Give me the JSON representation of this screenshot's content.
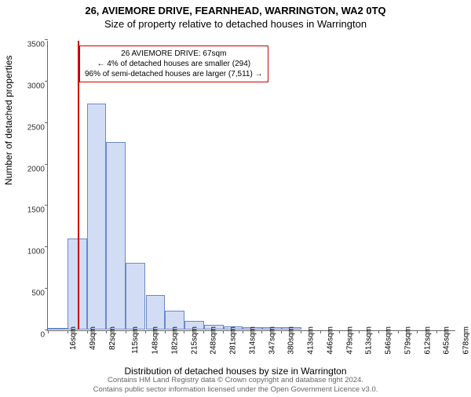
{
  "title_line1": "26, AVIEMORE DRIVE, FEARNHEAD, WARRINGTON, WA2 0TQ",
  "title_line2": "Size of property relative to detached houses in Warrington",
  "ylabel": "Number of detached properties",
  "xlabel": "Distribution of detached houses by size in Warrington",
  "footer_line1": "Contains HM Land Registry data © Crown copyright and database right 2024.",
  "footer_line2": "Contains public sector information licensed under the Open Government Licence v3.0.",
  "chart": {
    "type": "histogram",
    "ylim": [
      0,
      3500
    ],
    "ytick_step": 500,
    "yticks": [
      0,
      500,
      1000,
      1500,
      2000,
      2500,
      3000,
      3500
    ],
    "xtick_labels": [
      "16sqm",
      "49sqm",
      "82sqm",
      "115sqm",
      "148sqm",
      "182sqm",
      "215sqm",
      "248sqm",
      "281sqm",
      "314sqm",
      "347sqm",
      "380sqm",
      "413sqm",
      "446sqm",
      "479sqm",
      "513sqm",
      "546sqm",
      "579sqm",
      "612sqm",
      "645sqm",
      "678sqm"
    ],
    "bin_width": 33,
    "bars": [
      {
        "x": 16,
        "value": 20
      },
      {
        "x": 49,
        "value": 1100
      },
      {
        "x": 82,
        "value": 2720
      },
      {
        "x": 115,
        "value": 2260
      },
      {
        "x": 148,
        "value": 800
      },
      {
        "x": 182,
        "value": 420
      },
      {
        "x": 215,
        "value": 230
      },
      {
        "x": 248,
        "value": 100
      },
      {
        "x": 281,
        "value": 60
      },
      {
        "x": 314,
        "value": 40
      },
      {
        "x": 347,
        "value": 30
      },
      {
        "x": 380,
        "value": 25
      },
      {
        "x": 413,
        "value": 30
      },
      {
        "x": 446,
        "value": 0
      },
      {
        "x": 479,
        "value": 0
      },
      {
        "x": 513,
        "value": 0
      },
      {
        "x": 546,
        "value": 0
      },
      {
        "x": 579,
        "value": 0
      },
      {
        "x": 612,
        "value": 0
      },
      {
        "x": 645,
        "value": 0
      },
      {
        "x": 678,
        "value": 0
      }
    ],
    "marker": {
      "x_value": 67,
      "color": "#cc0000"
    },
    "callout": {
      "line1": "26 AVIEMORE DRIVE: 67sqm",
      "line2": "← 4% of detached houses are smaller (294)",
      "line3": "96% of semi-detached houses are larger (7,511) →",
      "border_color": "#cc0000",
      "bg_color": "#ffffff",
      "fontsize": 10
    },
    "bar_fill": "#d2ddf5",
    "bar_border": "#6b88c8",
    "axis_color": "#666666",
    "background": "#ffffff",
    "title_fontsize": 13,
    "label_fontsize": 12,
    "tick_fontsize": 10
  }
}
